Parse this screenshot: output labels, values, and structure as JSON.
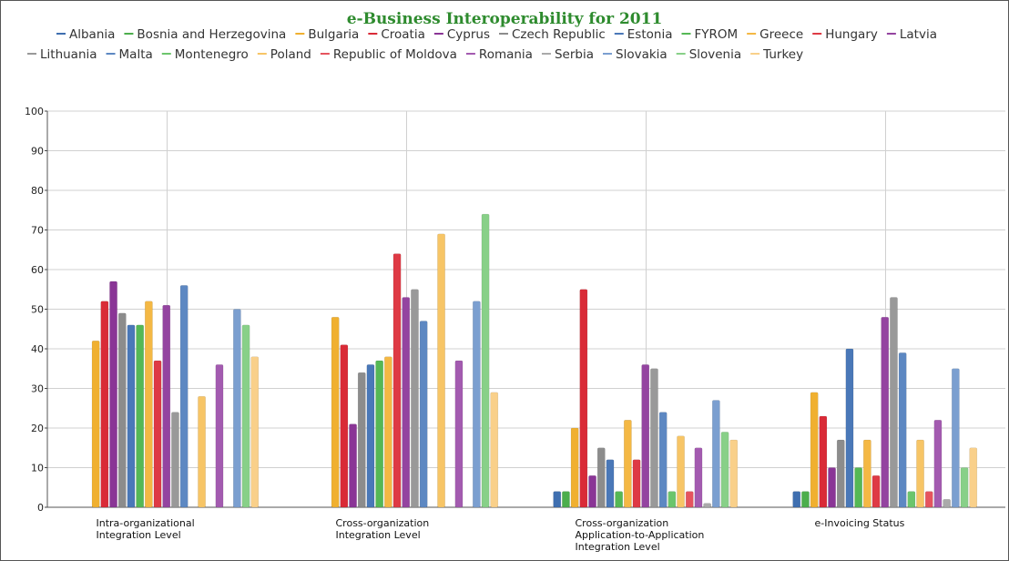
{
  "chart_data": {
    "type": "bar",
    "title": "e-Business Interoperability for 2011",
    "categories": [
      "Intra-organizational Integration Level",
      "Cross-organization Integration Level",
      "Cross-organization Application-to-Application Integration Level",
      "e-Invoicing Status"
    ],
    "ylim": [
      0,
      100
    ],
    "yticks": [
      0,
      10,
      20,
      30,
      40,
      50,
      60,
      70,
      80,
      90,
      100
    ],
    "grid": true,
    "legend": "top",
    "series": [
      {
        "name": "Albania",
        "color": "#3f6fb0",
        "values": [
          0,
          0,
          4,
          4
        ]
      },
      {
        "name": "Bosnia and Herzegovina",
        "color": "#4cae4c",
        "values": [
          0,
          0,
          4,
          4
        ]
      },
      {
        "name": "Bulgaria",
        "color": "#f0b030",
        "values": [
          42,
          48,
          20,
          29
        ]
      },
      {
        "name": "Croatia",
        "color": "#d92b37",
        "values": [
          52,
          41,
          55,
          23
        ]
      },
      {
        "name": "Cyprus",
        "color": "#8a3596",
        "values": [
          57,
          21,
          8,
          10
        ]
      },
      {
        "name": "Czech Republic",
        "color": "#8c8c8c",
        "values": [
          49,
          34,
          15,
          17
        ]
      },
      {
        "name": "Estonia",
        "color": "#4a78b8",
        "values": [
          46,
          36,
          12,
          40
        ]
      },
      {
        "name": "FYROM",
        "color": "#55b855",
        "values": [
          46,
          37,
          4,
          10
        ]
      },
      {
        "name": "Greece",
        "color": "#f4b844",
        "values": [
          52,
          38,
          22,
          17
        ]
      },
      {
        "name": "Hungary",
        "color": "#de3a45",
        "values": [
          37,
          64,
          12,
          8
        ]
      },
      {
        "name": "Latvia",
        "color": "#9444a0",
        "values": [
          51,
          53,
          36,
          48
        ]
      },
      {
        "name": "Lithuania",
        "color": "#999999",
        "values": [
          24,
          55,
          35,
          53
        ]
      },
      {
        "name": "Malta",
        "color": "#5d88c2",
        "values": [
          56,
          47,
          24,
          39
        ]
      },
      {
        "name": "Montenegro",
        "color": "#6cc56c",
        "values": [
          0,
          0,
          4,
          4
        ]
      },
      {
        "name": "Poland",
        "color": "#f7c566",
        "values": [
          28,
          69,
          18,
          17
        ]
      },
      {
        "name": "Republic of Moldova",
        "color": "#e5545e",
        "values": [
          0,
          0,
          4,
          4
        ]
      },
      {
        "name": "Romania",
        "color": "#a35bb0",
        "values": [
          36,
          37,
          15,
          22
        ]
      },
      {
        "name": "Serbia",
        "color": "#aaaaaa",
        "values": [
          0,
          0,
          1,
          2
        ]
      },
      {
        "name": "Slovakia",
        "color": "#7b9fd0",
        "values": [
          50,
          52,
          27,
          35
        ]
      },
      {
        "name": "Slovenia",
        "color": "#88d088",
        "values": [
          46,
          74,
          19,
          10
        ]
      },
      {
        "name": "Turkey",
        "color": "#f9d08a",
        "values": [
          38,
          29,
          17,
          15
        ]
      }
    ]
  }
}
